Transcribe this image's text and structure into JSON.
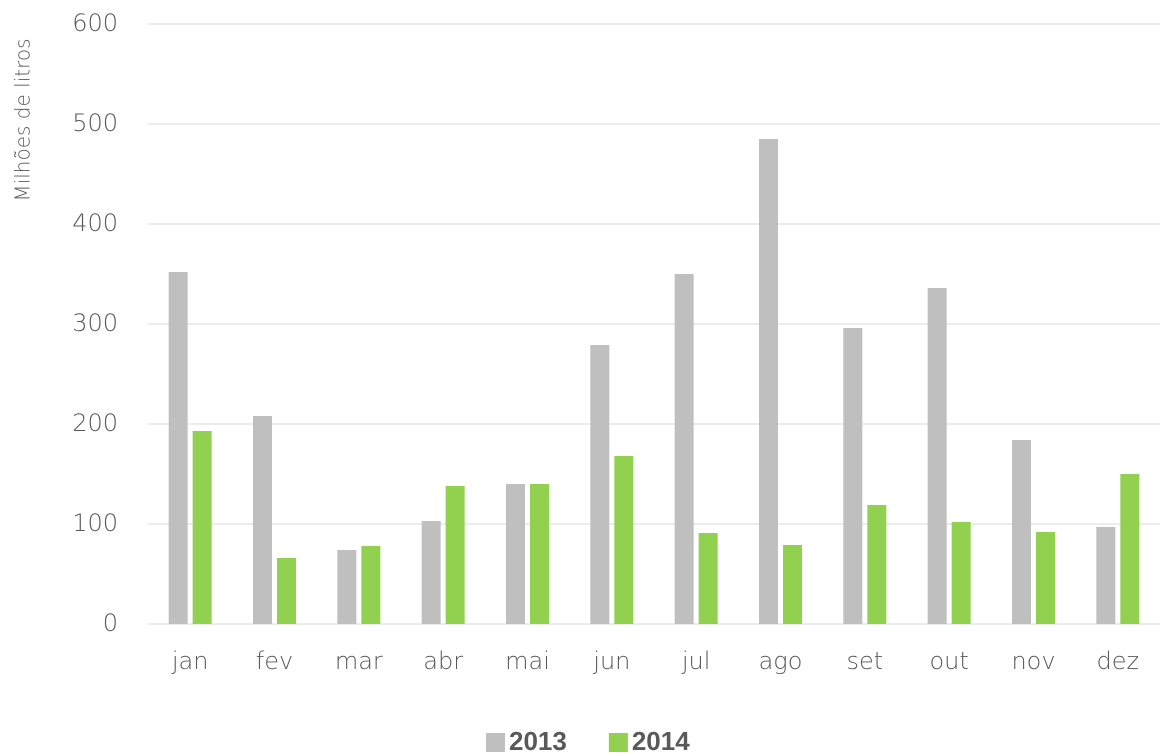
{
  "chart_data": {
    "type": "bar",
    "y_label": "Milhões de litros",
    "categories": [
      "jan",
      "fev",
      "mar",
      "abr",
      "mai",
      "jun",
      "jul",
      "ago",
      "set",
      "out",
      "nov",
      "dez"
    ],
    "series": [
      {
        "name": "2013",
        "color": "#bfbfbf",
        "values": [
          352,
          208,
          74,
          103,
          140,
          279,
          350,
          485,
          296,
          336,
          184,
          97
        ]
      },
      {
        "name": "2014",
        "color": "#92d050",
        "values": [
          193,
          66,
          78,
          138,
          140,
          168,
          91,
          79,
          119,
          102,
          92,
          150
        ]
      }
    ],
    "ylim": [
      0,
      600
    ],
    "yticks": [
      0,
      100,
      200,
      300,
      400,
      500,
      600
    ],
    "grid": true,
    "legend": "bottom"
  }
}
